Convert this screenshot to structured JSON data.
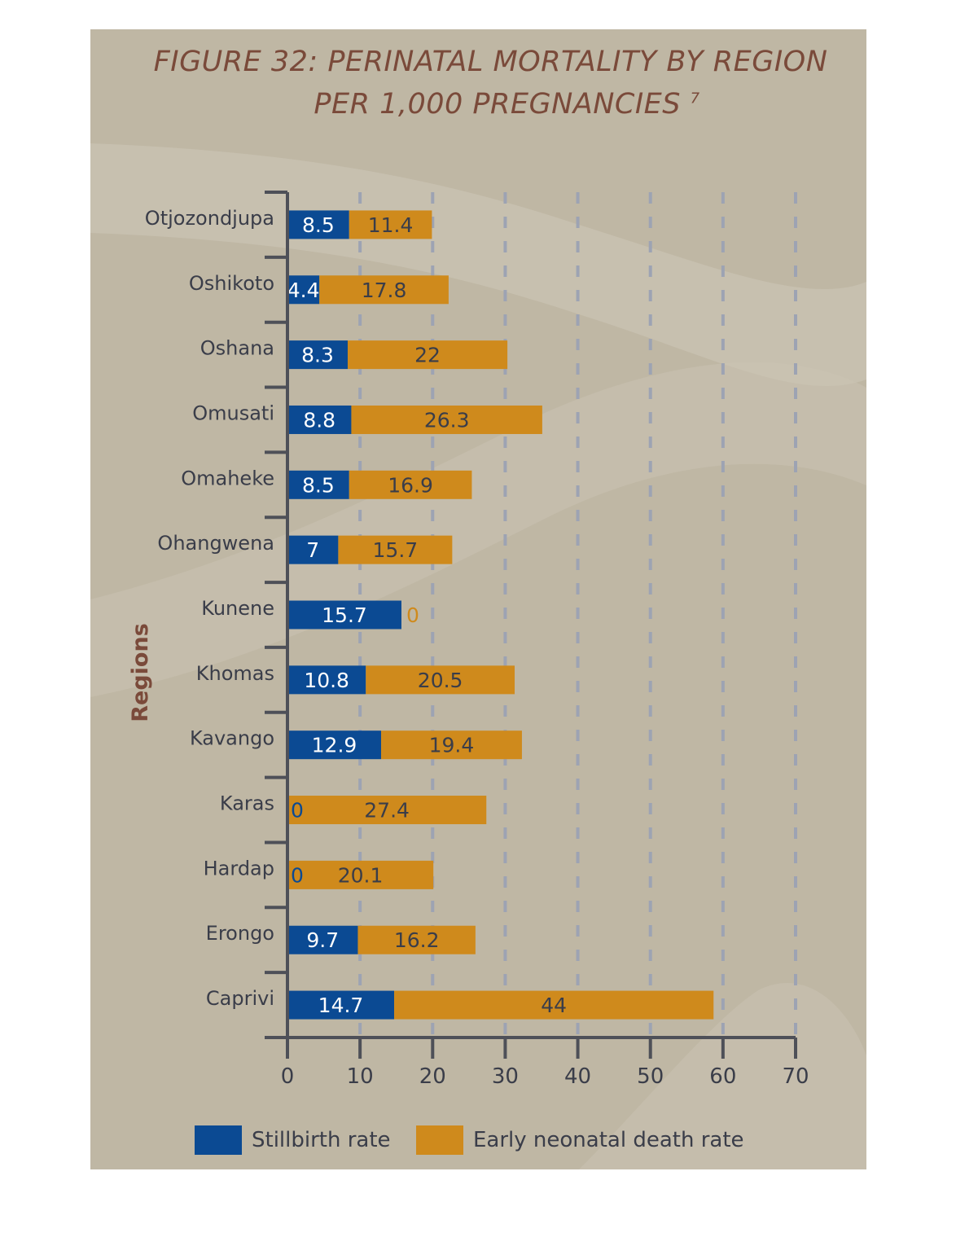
{
  "chart_data": {
    "type": "bar",
    "stacked": true,
    "orientation": "horizontal",
    "title_line1": "FIGURE 32: PERINATAL MORTALITY BY REGION",
    "title_line2": "PER 1,000 PREGNANCIES",
    "title_footnote": "7",
    "xlabel": "",
    "ylabel": "Regions",
    "xlim": [
      0,
      70
    ],
    "xticks": [
      "0",
      "10",
      "20",
      "30",
      "40",
      "50",
      "60",
      "70"
    ],
    "grid": "vertical dashed",
    "legend_position": "bottom",
    "categories": [
      "Otjozondjupa",
      "Oshikoto",
      "Oshana",
      "Omusati",
      "Omaheke",
      "Ohangwena",
      "Kunene",
      "Khomas",
      "Kavango",
      "Karas",
      "Hardap",
      "Erongo",
      "Caprivi"
    ],
    "series": [
      {
        "name": "Stillbirth rate",
        "color": "#0b4a93",
        "values": [
          8.5,
          4.4,
          8.3,
          8.8,
          8.5,
          7,
          15.7,
          10.8,
          12.9,
          0,
          0,
          9.7,
          14.7
        ]
      },
      {
        "name": "Early neonatal death rate",
        "color": "#cf8a1c",
        "values": [
          11.4,
          17.8,
          22,
          26.3,
          16.9,
          15.7,
          0,
          20.5,
          19.4,
          27.4,
          20.1,
          16.2,
          44
        ]
      }
    ]
  },
  "colors": {
    "panel_background": "#bfb7a4",
    "title": "#7a4a3a",
    "axis": "#4e5058",
    "grid": "#9da3b3",
    "label_on_blue": "#ffffff",
    "label_on_orange": "#3a3d49"
  }
}
